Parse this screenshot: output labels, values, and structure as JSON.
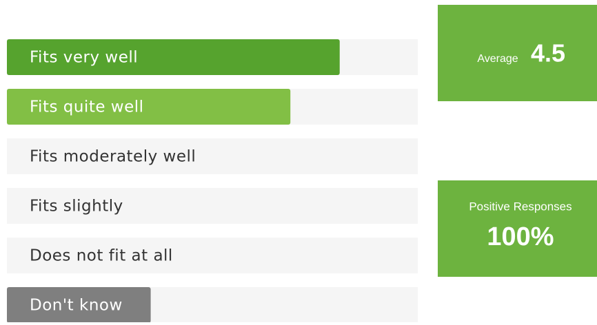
{
  "chart_data": {
    "type": "bar",
    "orientation": "horizontal",
    "categories": [
      "Fits very well",
      "Fits quite well",
      "Fits moderately well",
      "Fits slightly",
      "Does not fit at all",
      "Don't know"
    ],
    "values": [
      81,
      69,
      0,
      0,
      0,
      35
    ],
    "colors": [
      "#56a32e",
      "#82bf45",
      "#82bf45",
      "#82bf45",
      "#82bf45",
      "#7f7f7f"
    ],
    "xlim": [
      0,
      100
    ]
  },
  "stats": {
    "average": {
      "label": "Average",
      "value": 4.5
    },
    "positive": {
      "label": "Positive Responses",
      "value": 100,
      "value_label": "100%"
    }
  }
}
